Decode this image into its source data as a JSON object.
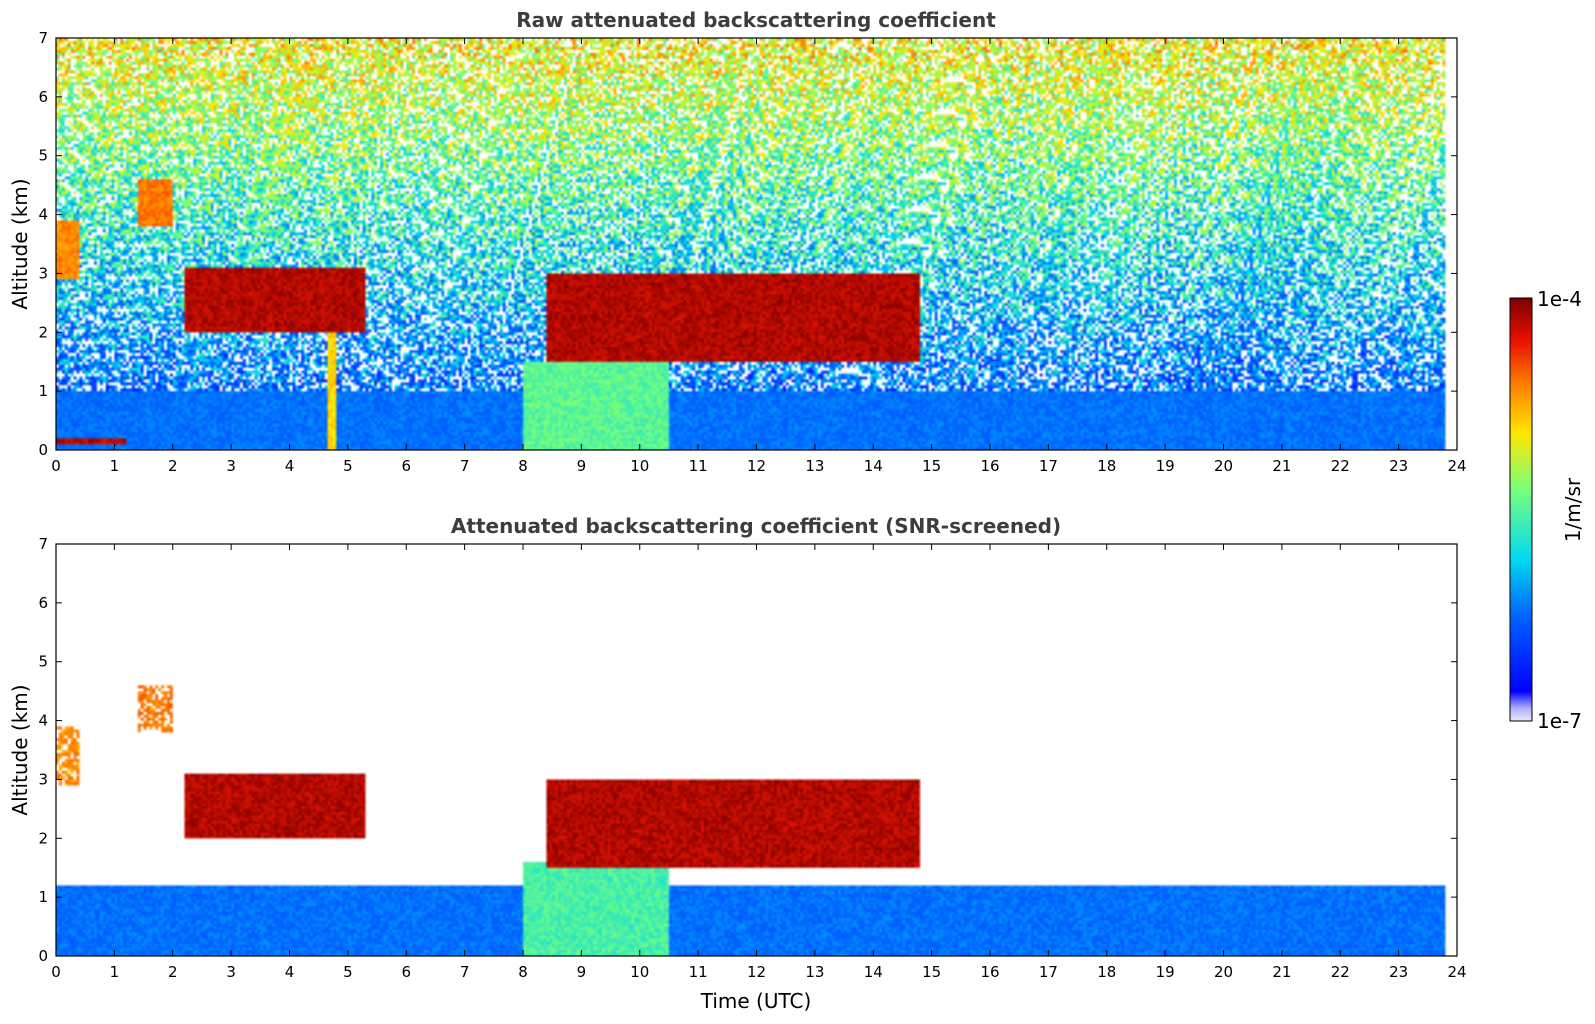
{
  "figure": {
    "xlabel": "Time (UTC)"
  },
  "chart_data": [
    {
      "type": "heatmap",
      "title": "Raw attenuated backscattering coefficient",
      "xlabel": "",
      "ylabel": "Altitude (km)",
      "xlim": [
        0,
        24
      ],
      "ylim": [
        0,
        7
      ],
      "xticks": [
        0,
        1,
        2,
        3,
        4,
        5,
        6,
        7,
        8,
        9,
        10,
        11,
        12,
        13,
        14,
        15,
        16,
        17,
        18,
        19,
        20,
        21,
        22,
        23,
        24
      ],
      "yticks": [
        0,
        1,
        2,
        3,
        4,
        5,
        6,
        7
      ],
      "data_end_time": 23.8,
      "features": [
        {
          "name": "boundary-layer aerosol",
          "x": [
            0,
            23.8
          ],
          "y": [
            0,
            1.0
          ],
          "level": 0.3
        },
        {
          "name": "aerosol plume",
          "x": [
            8.0,
            10.5
          ],
          "y": [
            0,
            1.5
          ],
          "level": 0.52
        },
        {
          "name": "low cloud",
          "x": [
            0,
            1.2
          ],
          "y": [
            0.1,
            0.2
          ],
          "level": 0.95
        },
        {
          "name": "cloud",
          "x": [
            0,
            0.4
          ],
          "y": [
            2.9,
            3.9
          ],
          "level": 0.78
        },
        {
          "name": "cloud",
          "x": [
            1.4,
            2.0
          ],
          "y": [
            3.8,
            4.6
          ],
          "level": 0.8
        },
        {
          "name": "cloud layer",
          "x": [
            2.2,
            5.3
          ],
          "y": [
            2.0,
            3.1
          ],
          "level": 0.95
        },
        {
          "name": "precipitation fall streak",
          "x": [
            4.65,
            4.8
          ],
          "y": [
            0,
            2.3
          ],
          "level": 0.7
        },
        {
          "name": "cloud layer",
          "x": [
            8.4,
            14.8
          ],
          "y": [
            1.5,
            3.0
          ],
          "level": 0.95
        }
      ]
    },
    {
      "type": "heatmap",
      "title": "Attenuated backscattering coefficient (SNR-screened)",
      "xlabel": "Time (UTC)",
      "ylabel": "Altitude (km)",
      "xlim": [
        0,
        24
      ],
      "ylim": [
        0,
        7
      ],
      "xticks": [
        0,
        1,
        2,
        3,
        4,
        5,
        6,
        7,
        8,
        9,
        10,
        11,
        12,
        13,
        14,
        15,
        16,
        17,
        18,
        19,
        20,
        21,
        22,
        23,
        24
      ],
      "yticks": [
        0,
        1,
        2,
        3,
        4,
        5,
        6,
        7
      ],
      "data_end_time": 23.8,
      "features": [
        {
          "name": "boundary-layer aerosol",
          "x": [
            0,
            23.8
          ],
          "y": [
            0,
            1.2
          ],
          "level": 0.3
        },
        {
          "name": "aerosol plume",
          "x": [
            8.0,
            10.5
          ],
          "y": [
            0,
            1.6
          ],
          "level": 0.5
        },
        {
          "name": "cloud",
          "x": [
            0,
            0.4
          ],
          "y": [
            2.9,
            3.9
          ],
          "level": 0.78
        },
        {
          "name": "cloud",
          "x": [
            1.4,
            2.0
          ],
          "y": [
            3.8,
            4.6
          ],
          "level": 0.8
        },
        {
          "name": "cloud layer",
          "x": [
            2.2,
            5.3
          ],
          "y": [
            2.0,
            3.1
          ],
          "level": 0.95
        },
        {
          "name": "cloud layer",
          "x": [
            8.4,
            14.8
          ],
          "y": [
            1.5,
            3.0
          ],
          "level": 0.95
        }
      ]
    }
  ],
  "colorbar": {
    "label": "1/m/sr",
    "max_label": "1e-4",
    "min_label": "1e-7",
    "scale": "log",
    "range": [
      1e-07,
      0.0001
    ],
    "colormap": "jet"
  }
}
